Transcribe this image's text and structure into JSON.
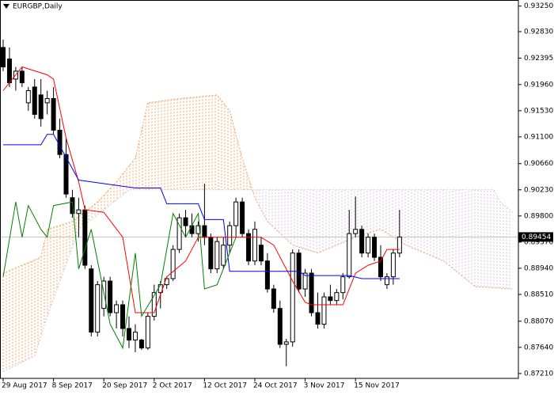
{
  "chart_data": {
    "type": "candlestick",
    "title": "EURGBP,Daily",
    "categories": [
      "29 Aug 2017",
      null,
      null,
      null,
      null,
      null,
      null,
      null,
      "8 Sep 2017",
      null,
      null,
      null,
      null,
      null,
      null,
      null,
      "20 Sep 2017",
      null,
      null,
      null,
      null,
      null,
      null,
      null,
      "2 Oct 2017",
      null,
      null,
      null,
      null,
      null,
      null,
      null,
      "12 Oct 2017",
      null,
      null,
      null,
      null,
      null,
      null,
      null,
      "24 Oct 2017",
      null,
      null,
      null,
      null,
      null,
      null,
      null,
      "3 Nov 2017",
      null,
      null,
      null,
      null,
      null,
      null,
      null,
      "15 Nov 2017",
      null,
      null,
      null,
      null,
      null,
      null,
      null
    ],
    "open": [
      0.9257,
      0.9238,
      0.9205,
      0.9218,
      0.9166,
      0.9192,
      0.9179,
      0.9166,
      0.9173,
      0.9121,
      0.9081,
      0.901,
      0.8984,
      0.899,
      0.8893,
      0.8789,
      0.8828,
      0.8873,
      0.8821,
      0.8834,
      0.8795,
      0.8776,
      0.8776,
      0.8763,
      0.8815,
      0.8854,
      0.8867,
      0.8877,
      0.8925,
      0.8977,
      0.8964,
      0.8951,
      0.8964,
      0.8945,
      0.8893,
      0.8899,
      0.8932,
      0.8964,
      0.9003,
      0.8951,
      0.8906,
      0.8932,
      0.8906,
      0.886,
      0.8828,
      0.8769,
      0.8773,
      0.8919,
      0.886,
      0.8886,
      0.8821,
      0.8802,
      0.8847,
      0.8841,
      0.8854,
      0.888,
      0.8951,
      0.8958,
      0.8919,
      0.8945,
      0.8912,
      0.8867,
      0.888,
      0.8919
    ],
    "high": [
      0.927,
      0.9257,
      0.9225,
      0.9225,
      0.9192,
      0.9205,
      0.9205,
      0.9186,
      0.9192,
      0.914,
      0.9108,
      0.9023,
      0.901,
      0.8997,
      0.8899,
      0.8873,
      0.888,
      0.888,
      0.8841,
      0.8841,
      0.8815,
      0.8802,
      0.8778,
      0.8821,
      0.8867,
      0.8873,
      0.888,
      0.8932,
      0.8984,
      0.899,
      0.8984,
      0.8971,
      0.9033,
      0.8951,
      0.8945,
      0.8945,
      0.8971,
      0.901,
      0.901,
      0.8958,
      0.8971,
      0.8945,
      0.8919,
      0.8867,
      0.8841,
      0.8778,
      0.8925,
      0.8925,
      0.8893,
      0.8893,
      0.8854,
      0.8854,
      0.8867,
      0.886,
      0.8886,
      0.899,
      0.9012,
      0.8964,
      0.8951,
      0.8951,
      0.8932,
      0.8886,
      0.8925,
      0.899
    ],
    "low": [
      0.9218,
      0.9192,
      0.9186,
      0.9192,
      0.9153,
      0.914,
      0.9127,
      0.9147,
      0.9114,
      0.9075,
      0.901,
      0.8977,
      0.8945,
      0.8893,
      0.8782,
      0.8782,
      0.8815,
      0.8815,
      0.8795,
      0.8782,
      0.8763,
      0.8756,
      0.876,
      0.876,
      0.8808,
      0.8828,
      0.886,
      0.8873,
      0.8919,
      0.8945,
      0.8945,
      0.8938,
      0.8932,
      0.8886,
      0.8886,
      0.8893,
      0.8919,
      0.8945,
      0.8945,
      0.8899,
      0.8899,
      0.8899,
      0.8854,
      0.8821,
      0.8763,
      0.8733,
      0.8765,
      0.8854,
      0.8847,
      0.8815,
      0.8795,
      0.8795,
      0.8834,
      0.8834,
      0.8843,
      0.8877,
      0.8945,
      0.8912,
      0.8912,
      0.8906,
      0.8873,
      0.886,
      0.8867,
      0.8912
    ],
    "close": [
      0.9225,
      0.9199,
      0.9218,
      0.9199,
      0.9186,
      0.9147,
      0.914,
      0.9173,
      0.9121,
      0.9081,
      0.9016,
      0.8984,
      0.899,
      0.8899,
      0.8789,
      0.8867,
      0.8873,
      0.8821,
      0.8834,
      0.8795,
      0.8776,
      0.8789,
      0.8763,
      0.8815,
      0.8854,
      0.8867,
      0.8877,
      0.8925,
      0.8977,
      0.8964,
      0.8951,
      0.8964,
      0.8945,
      0.8893,
      0.8938,
      0.8932,
      0.8964,
      0.9003,
      0.8951,
      0.8906,
      0.8958,
      0.8906,
      0.886,
      0.8828,
      0.8769,
      0.8773,
      0.8919,
      0.886,
      0.8886,
      0.8821,
      0.8802,
      0.8847,
      0.8841,
      0.8854,
      0.888,
      0.8951,
      0.8958,
      0.8919,
      0.8945,
      0.8912,
      0.888,
      0.888,
      0.8919,
      0.89454
    ],
    "up_color": "#ffffff",
    "down_color": "#000000",
    "edge_color": "#000000",
    "lines": [
      {
        "color": "#ff0000",
        "x": [
          0,
          3,
          7,
          8,
          10,
          12,
          13,
          16,
          19,
          21,
          24,
          26,
          29,
          31,
          41,
          43,
          46,
          48,
          49,
          54,
          56,
          58,
          60,
          61,
          63
        ],
        "values": [
          0.9186,
          0.9225,
          0.9212,
          0.9205,
          0.9108,
          0.9036,
          0.899,
          0.8986,
          0.8945,
          0.8821,
          0.8821,
          0.888,
          0.8906,
          0.8945,
          0.8945,
          0.8932,
          0.8873,
          0.8838,
          0.8834,
          0.8834,
          0.8886,
          0.8899,
          0.8906,
          0.8925,
          0.8925
        ]
      },
      {
        "color": "#0000ff",
        "x": [
          0,
          6,
          7,
          8,
          12,
          21,
          25,
          26,
          31,
          32,
          35,
          36,
          47,
          48,
          55,
          57,
          63
        ],
        "values": [
          0.9097,
          0.9097,
          0.9114,
          0.9114,
          0.9039,
          0.9026,
          0.9026,
          0.9,
          0.9,
          0.8974,
          0.8974,
          0.8889,
          0.8889,
          0.8882,
          0.8882,
          0.8877,
          0.8877
        ]
      },
      {
        "color": "#008000",
        "x": [
          0,
          2,
          3,
          4,
          6,
          7,
          8,
          11,
          12,
          14,
          17,
          19,
          21,
          22,
          25,
          27,
          29,
          31,
          32,
          34,
          36,
          37
        ],
        "values": [
          0.888,
          0.9003,
          0.8945,
          0.8997,
          0.8958,
          0.8945,
          0.8997,
          0.9003,
          0.8893,
          0.8958,
          0.8802,
          0.8763,
          0.8919,
          0.8815,
          0.8867,
          0.8984,
          0.8945,
          0.8984,
          0.886,
          0.8867,
          0.8919,
          0.8945
        ]
      }
    ],
    "cloud": [
      {
        "color": "#f4a460",
        "x": [
          0,
          6,
          7,
          11,
          15,
          18,
          21,
          23,
          28,
          34,
          36,
          38,
          40,
          42,
          46,
          50,
          56,
          60,
          64,
          70,
          75,
          81
        ],
        "values": [
          0.8886,
          0.8912,
          0.8958,
          0.8971,
          0.9003,
          0.9036,
          0.9075,
          0.9166,
          0.9173,
          0.9179,
          0.9153,
          0.9075,
          0.901,
          0.8971,
          0.8932,
          0.8919,
          0.8945,
          0.8958,
          0.8932,
          0.8906,
          0.8864,
          0.886
        ]
      },
      {
        "color": "#d8bfd8",
        "x": [
          0,
          5,
          7,
          12,
          16,
          20,
          78,
          79,
          81
        ],
        "values": [
          0.8724,
          0.875,
          0.8815,
          0.8958,
          0.899,
          0.9023,
          0.9023,
          0.9003,
          0.8986
        ]
      }
    ],
    "last_price": 0.89454,
    "ylim": [
      0.8713,
      0.9335
    ],
    "yticks": [
      {
        "value": 0.9325,
        "label": "0.93250"
      },
      {
        "value": 0.9283,
        "label": "0.92830"
      },
      0.92395,
      {
        "value": 0.9196,
        "label": "0.91960"
      },
      {
        "value": 0.9153,
        "label": "0.91530"
      },
      {
        "value": 0.911,
        "label": "0.91100"
      },
      {
        "value": 0.9066,
        "label": "0.90660"
      },
      {
        "value": 0.9023,
        "label": "0.90230"
      },
      {
        "value": 0.898,
        "label": "0.89800"
      },
      {
        "value": 0.8937,
        "label": "0.89370"
      },
      {
        "value": 0.8894,
        "label": "0.88940"
      },
      {
        "value": 0.8851,
        "label": "0.88510"
      },
      {
        "value": 0.8807,
        "label": "0.88070"
      },
      {
        "value": 0.8764,
        "label": "0.87640"
      },
      {
        "value": 0.8721,
        "label": "0.87210"
      }
    ]
  }
}
